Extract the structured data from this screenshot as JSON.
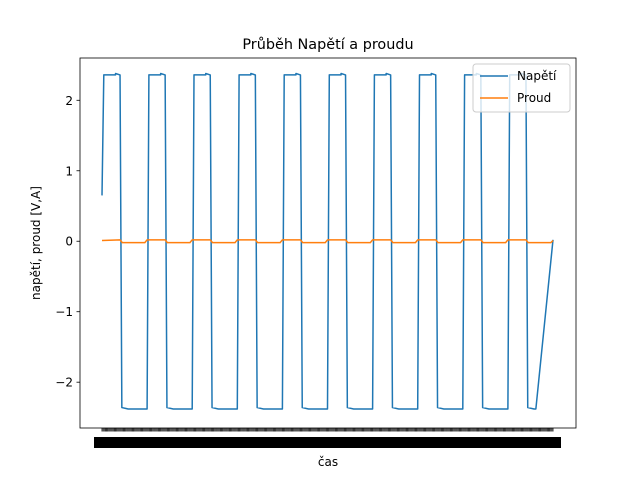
{
  "chart_data": {
    "type": "line",
    "title": "Průběh Napětí a proudu",
    "xlabel": "čas",
    "ylabel": "napětí, proud [V,A]",
    "xlim": [
      0,
      1
    ],
    "ylim": [
      -2.65,
      2.6
    ],
    "yticks": [
      -2,
      -1,
      0,
      1,
      2
    ],
    "xticks_note": "dense overlapping tick labels",
    "grid": false,
    "legend_position": "top-right",
    "series": [
      {
        "name": "Napětí",
        "color": "#1f77b4",
        "x": [
          0,
          0.004,
          0.008,
          0.03,
          0.03,
          0.04,
          0.044,
          0.058,
          0.062,
          0.1,
          0.104,
          0.13,
          0.13,
          0.14,
          0.144,
          0.158,
          0.162,
          0.2,
          0.204,
          0.23,
          0.23,
          0.24,
          0.244,
          0.258,
          0.262,
          0.3,
          0.304,
          0.33,
          0.33,
          0.34,
          0.344,
          0.358,
          0.362,
          0.4,
          0.404,
          0.43,
          0.43,
          0.44,
          0.444,
          0.458,
          0.462,
          0.5,
          0.504,
          0.53,
          0.53,
          0.54,
          0.544,
          0.558,
          0.562,
          0.6,
          0.604,
          0.63,
          0.63,
          0.64,
          0.644,
          0.658,
          0.662,
          0.7,
          0.704,
          0.73,
          0.73,
          0.74,
          0.744,
          0.758,
          0.762,
          0.8,
          0.804,
          0.83,
          0.83,
          0.84,
          0.844,
          0.858,
          0.862,
          0.9,
          0.904,
          0.93,
          0.93,
          0.94,
          0.944,
          0.958,
          0.962,
          1.0
        ],
        "y": [
          0.65,
          2.36,
          2.36,
          2.36,
          2.38,
          2.36,
          -2.36,
          -2.38,
          -2.38,
          -2.38,
          2.36,
          2.36,
          2.38,
          2.36,
          -2.36,
          -2.38,
          -2.38,
          -2.38,
          2.36,
          2.36,
          2.38,
          2.36,
          -2.36,
          -2.38,
          -2.38,
          -2.38,
          2.36,
          2.36,
          2.38,
          2.36,
          -2.36,
          -2.38,
          -2.38,
          -2.38,
          2.36,
          2.36,
          2.38,
          2.36,
          -2.36,
          -2.38,
          -2.38,
          -2.38,
          2.36,
          2.36,
          2.38,
          2.36,
          -2.36,
          -2.38,
          -2.38,
          -2.38,
          2.36,
          2.36,
          2.38,
          2.36,
          -2.36,
          -2.38,
          -2.38,
          -2.38,
          2.36,
          2.36,
          2.38,
          2.36,
          -2.36,
          -2.38,
          -2.38,
          -2.38,
          2.36,
          2.36,
          2.38,
          2.36,
          -2.36,
          -2.38,
          -2.38,
          -2.38,
          2.36,
          2.36,
          2.38,
          2.36,
          -2.36,
          -2.38,
          -2.38,
          0.02
        ]
      },
      {
        "name": "Proud",
        "color": "#ff7f0e",
        "x": [
          0,
          0.04,
          0.045,
          0.095,
          0.1,
          0.14,
          0.145,
          0.195,
          0.2,
          0.24,
          0.245,
          0.295,
          0.3,
          0.34,
          0.345,
          0.395,
          0.4,
          0.44,
          0.445,
          0.495,
          0.5,
          0.54,
          0.545,
          0.595,
          0.6,
          0.64,
          0.645,
          0.695,
          0.7,
          0.74,
          0.745,
          0.795,
          0.8,
          0.84,
          0.845,
          0.895,
          0.9,
          0.94,
          0.945,
          0.995,
          1.0
        ],
        "y": [
          0.01,
          0.02,
          -0.02,
          -0.02,
          0.02,
          0.02,
          -0.02,
          -0.02,
          0.02,
          0.02,
          -0.02,
          -0.02,
          0.02,
          0.02,
          -0.02,
          -0.02,
          0.02,
          0.02,
          -0.02,
          -0.02,
          0.02,
          0.02,
          -0.02,
          -0.02,
          0.02,
          0.02,
          -0.02,
          -0.02,
          0.02,
          0.02,
          -0.02,
          -0.02,
          0.02,
          0.02,
          -0.02,
          -0.02,
          0.02,
          0.02,
          -0.02,
          -0.02,
          0.01
        ]
      }
    ]
  }
}
